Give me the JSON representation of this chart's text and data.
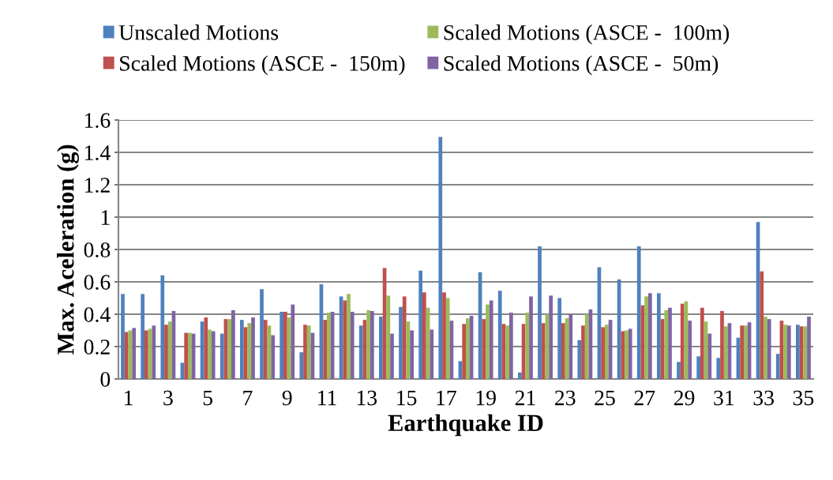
{
  "chart_data": {
    "type": "bar",
    "xlabel": "Earthquake ID",
    "ylabel": "Max. Aceleration (g)",
    "categories": [
      "1",
      null,
      "3",
      null,
      "5",
      null,
      "7",
      null,
      "9",
      null,
      "11",
      null,
      "13",
      null,
      "15",
      null,
      "17",
      null,
      "19",
      null,
      "21",
      null,
      "23",
      null,
      "25",
      null,
      "27",
      null,
      "29",
      null,
      "31",
      null,
      "33",
      null,
      "35"
    ],
    "series": [
      {
        "name": "Unscaled Motions",
        "color": "#4f81bd",
        "values": [
          0.525,
          0.525,
          0.64,
          0.1,
          0.355,
          0.28,
          0.365,
          0.555,
          0.415,
          0.165,
          0.585,
          0.51,
          0.33,
          0.385,
          0.445,
          0.67,
          1.495,
          0.11,
          0.66,
          0.545,
          0.04,
          0.82,
          0.5,
          0.24,
          0.69,
          0.615,
          0.82,
          0.53,
          0.105,
          0.14,
          0.13,
          0.255,
          0.97,
          0.155,
          0.335
        ]
      },
      {
        "name": "Scaled Motions (ASCE -  150m)",
        "color": "#c0504d",
        "values": [
          0.29,
          0.3,
          0.335,
          0.285,
          0.38,
          0.37,
          0.32,
          0.365,
          0.415,
          0.335,
          0.365,
          0.485,
          0.365,
          0.685,
          0.51,
          0.535,
          0.535,
          0.34,
          0.37,
          0.34,
          0.34,
          0.345,
          0.345,
          0.33,
          0.32,
          0.295,
          0.455,
          0.37,
          0.465,
          0.44,
          0.42,
          0.33,
          0.665,
          0.36,
          0.325
        ]
      },
      {
        "name": "Scaled Motions (ASCE -  100m)",
        "color": "#9bbb59",
        "values": [
          0.3,
          0.31,
          0.355,
          0.285,
          0.305,
          0.37,
          0.345,
          0.33,
          0.38,
          0.33,
          0.41,
          0.525,
          0.425,
          0.515,
          0.355,
          0.44,
          0.5,
          0.375,
          0.46,
          0.33,
          0.41,
          0.4,
          0.375,
          0.4,
          0.335,
          0.3,
          0.51,
          0.425,
          0.48,
          0.355,
          0.325,
          0.33,
          0.385,
          0.335,
          0.325
        ]
      },
      {
        "name": "Scaled Motions (ASCE -  50m)",
        "color": "#8064a2",
        "values": [
          0.315,
          0.33,
          0.42,
          0.28,
          0.295,
          0.425,
          0.38,
          0.27,
          0.46,
          0.285,
          0.415,
          0.415,
          0.42,
          0.28,
          0.3,
          0.305,
          0.36,
          0.39,
          0.485,
          0.41,
          0.51,
          0.515,
          0.4,
          0.43,
          0.365,
          0.31,
          0.53,
          0.44,
          0.36,
          0.28,
          0.345,
          0.35,
          0.37,
          0.33,
          0.385
        ]
      }
    ],
    "ylim": [
      0,
      1.6
    ],
    "yticks": [
      0,
      0.2,
      0.4,
      0.6,
      0.8,
      1,
      1.2,
      1.4,
      1.6
    ],
    "grid": "y",
    "legend": "top"
  }
}
